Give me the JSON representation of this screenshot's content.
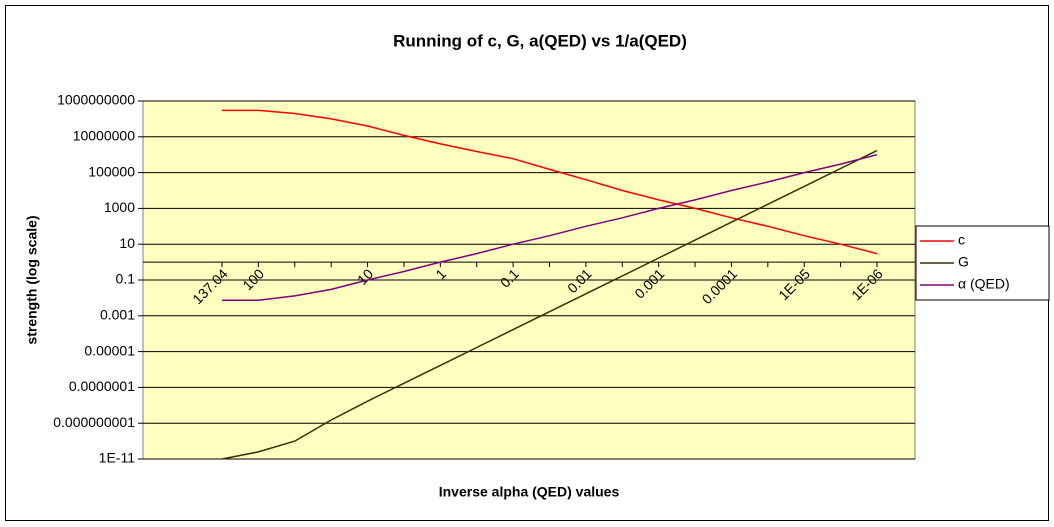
{
  "chart_data": {
    "type": "line",
    "title": "Running of c, G, a(QED) vs 1/a(QED)",
    "x_label": "Inverse alpha (QED) values",
    "y_label": "strength (log scale)",
    "categories": [
      "137.04",
      "100",
      null,
      null,
      "10",
      null,
      "1",
      null,
      "0.1",
      null,
      "0.01",
      null,
      "0.001",
      null,
      "0.0001",
      null,
      "1E-05",
      null,
      "1E-06"
    ],
    "series": [
      {
        "name": "c",
        "color": "#ff0000",
        "values": [
          300000000,
          300000000,
          200000000,
          100000000,
          40000000,
          12000000,
          4000000,
          1500000,
          600000,
          150000,
          40000,
          10000,
          3000,
          1000,
          300,
          100,
          30,
          10,
          3
        ]
      },
      {
        "name": "G",
        "color": "#333300",
        "values": [
          1e-11,
          2.5e-11,
          1e-10,
          1.5e-09,
          1.7e-08,
          1.7e-07,
          1.7e-06,
          1.7e-05,
          0.00017,
          0.0017,
          0.017,
          0.17,
          1.7,
          17,
          170,
          1700,
          17000,
          170000,
          1700000
        ]
      },
      {
        "name": "α (QED)",
        "color": "#800080",
        "values": [
          0.0073,
          0.0073,
          0.013,
          0.03,
          0.1,
          0.3,
          1,
          3,
          10,
          30,
          100,
          300,
          1000,
          3000,
          10000,
          30000,
          100000,
          300000,
          1000000
        ]
      }
    ],
    "ylim": [
      1e-11,
      1000000000
    ],
    "yticks": [
      {
        "value": 1e-11,
        "label": "1E-11"
      },
      {
        "value": 1e-09,
        "label": "0.000000001"
      },
      {
        "value": 1e-07,
        "label": "0.0000001"
      },
      1e-05,
      0.001,
      0.1,
      10,
      1000,
      100000,
      10000000,
      1000000000
    ],
    "log_scale": true,
    "grid": true,
    "x_axis_crosses": 1,
    "plot_background": "#ffffc0",
    "legend": "right"
  }
}
